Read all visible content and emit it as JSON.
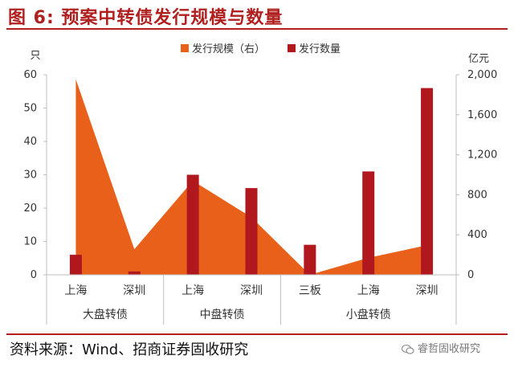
{
  "figure": {
    "title": "图 6:  预案中转债发行规模与数量",
    "source": "资料来源：Wind、招商证券固收研究",
    "watermark": "睿哲固收研究",
    "watermark_icon": "wechat-icon"
  },
  "colors": {
    "area": "#e8601a",
    "bar": "#b0181e",
    "accent": "#b0201f",
    "axis": "#bfbfbf"
  },
  "chart_data": {
    "type": "bar",
    "categories": [
      "上海",
      "深圳",
      "上海",
      "深圳",
      "三板",
      "上海",
      "深圳"
    ],
    "groups": [
      {
        "label": "大盘转债",
        "span": 2
      },
      {
        "label": "中盘转债",
        "span": 2
      },
      {
        "label": "小盘转债",
        "span": 3
      }
    ],
    "series": [
      {
        "name": "发行规模（右）",
        "type": "area",
        "axis": "right",
        "values": [
          1955,
          255,
          940,
          575,
          0,
          170,
          295
        ]
      },
      {
        "name": "发行数量",
        "type": "bar",
        "axis": "left",
        "values": [
          6,
          1,
          30,
          26,
          9,
          31,
          56
        ]
      }
    ],
    "y_left": {
      "unit": "只",
      "min": 0,
      "max": 60,
      "ticks": [
        "0",
        "10",
        "20",
        "30",
        "40",
        "50",
        "60"
      ]
    },
    "y_right": {
      "unit": "亿元",
      "min": 0,
      "max": 2000,
      "ticks": [
        "0",
        "400",
        "800",
        "1,200",
        "1,600",
        "2,000"
      ]
    },
    "legend_position": "top",
    "grid": false
  }
}
